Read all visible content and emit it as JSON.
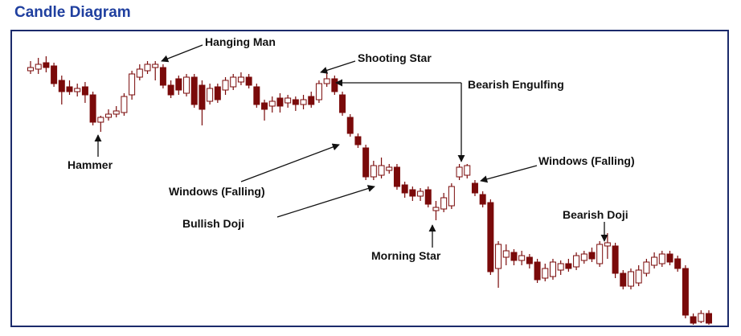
{
  "chart_data": {
    "type": "candlestick",
    "title": "Candle Diagram",
    "ylim": [
      0,
      368
    ],
    "up_color": "#ffffff",
    "down_color": "#7a0a0a",
    "edge_color": "#7a0a0a",
    "open": [
      318,
      320,
      328,
      324,
      306,
      298,
      292,
      298,
      288,
      254,
      260,
      264,
      266,
      288,
      310,
      318,
      322,
      322,
      300,
      308,
      290,
      310,
      300,
      280,
      298,
      294,
      298,
      304,
      310,
      298,
      278,
      274,
      284,
      278,
      282,
      276,
      286,
      282,
      302,
      308,
      288,
      260,
      236,
      222,
      186,
      188,
      194,
      198,
      176,
      170,
      162,
      170,
      144,
      146,
      150,
      186,
      188,
      178,
      164,
      154,
      72,
      86,
      92,
      82,
      86,
      80,
      60,
      62,
      70,
      78,
      74,
      82,
      92,
      78,
      100,
      100,
      66,
      50,
      54,
      66,
      76,
      78,
      90,
      84,
      72,
      12,
      6,
      16
    ],
    "high": [
      330,
      334,
      336,
      328,
      312,
      306,
      302,
      304,
      292,
      262,
      270,
      274,
      290,
      318,
      326,
      330,
      330,
      326,
      306,
      312,
      314,
      314,
      306,
      302,
      302,
      310,
      314,
      316,
      314,
      302,
      282,
      286,
      290,
      288,
      286,
      288,
      292,
      306,
      318,
      312,
      292,
      264,
      240,
      226,
      206,
      210,
      202,
      202,
      180,
      174,
      172,
      174,
      156,
      166,
      178,
      202,
      202,
      182,
      168,
      158,
      106,
      102,
      96,
      94,
      90,
      84,
      78,
      84,
      82,
      84,
      92,
      94,
      98,
      106,
      116,
      104,
      70,
      72,
      76,
      84,
      92,
      94,
      94,
      88,
      76,
      16,
      20,
      20
    ],
    "low": [
      314,
      314,
      316,
      298,
      276,
      288,
      286,
      278,
      250,
      242,
      256,
      260,
      262,
      282,
      306,
      314,
      306,
      296,
      284,
      288,
      286,
      272,
      250,
      276,
      278,
      288,
      294,
      300,
      296,
      272,
      256,
      266,
      266,
      272,
      268,
      270,
      272,
      278,
      298,
      288,
      262,
      236,
      222,
      182,
      182,
      184,
      190,
      170,
      160,
      156,
      156,
      148,
      132,
      142,
      146,
      182,
      184,
      162,
      148,
      64,
      48,
      76,
      76,
      76,
      72,
      54,
      56,
      58,
      64,
      68,
      70,
      78,
      80,
      74,
      84,
      60,
      46,
      46,
      50,
      62,
      72,
      74,
      76,
      68,
      10,
      2,
      4,
      2
    ],
    "close": [
      322,
      326,
      322,
      302,
      292,
      292,
      296,
      288,
      254,
      260,
      264,
      268,
      286,
      314,
      320,
      326,
      326,
      300,
      288,
      294,
      310,
      276,
      270,
      296,
      282,
      306,
      310,
      310,
      300,
      276,
      270,
      280,
      274,
      284,
      276,
      282,
      276,
      302,
      308,
      292,
      266,
      240,
      226,
      186,
      200,
      200,
      198,
      174,
      166,
      162,
      168,
      152,
      148,
      160,
      174,
      198,
      200,
      166,
      152,
      68,
      102,
      94,
      82,
      88,
      78,
      58,
      72,
      80,
      78,
      72,
      88,
      90,
      84,
      102,
      104,
      66,
      50,
      68,
      70,
      80,
      86,
      90,
      80,
      72,
      14,
      4,
      16,
      4
    ],
    "annotations": [
      {
        "text": "Hanging Man"
      },
      {
        "text": "Shooting Star"
      },
      {
        "text": "Bearish Engulfing"
      },
      {
        "text": "Hammer"
      },
      {
        "text": "Windows (Falling)"
      },
      {
        "text": "Bullish Doji"
      },
      {
        "text": "Morning Star"
      },
      {
        "text": "Windows (Falling)"
      },
      {
        "text": "Bearish Doji"
      }
    ]
  }
}
